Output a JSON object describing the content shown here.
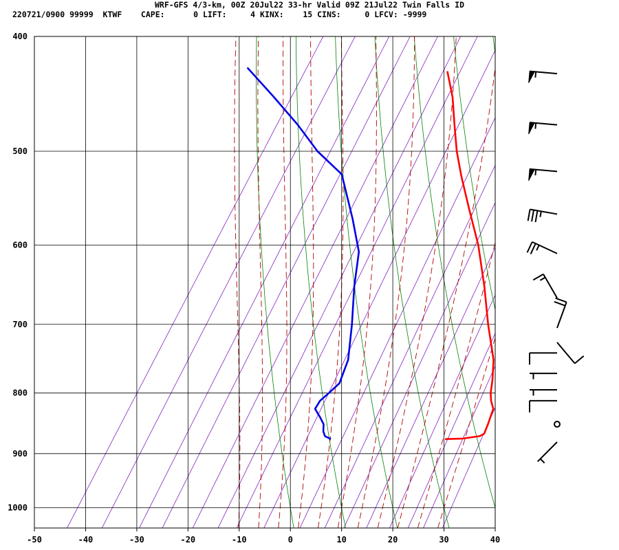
{
  "header": {
    "line1": "WRF-GFS 4/3-km, 00Z 20Jul22 33-hr Valid 09Z 21Jul22 Twin Falls ID",
    "line2": "220721/0900 99999  KTWF    CAPE:      0 LIFT:     4 KINX:    15 CINS:     0 LFCV: -9999"
  },
  "chart_data": {
    "type": "line",
    "title": "WRF-GFS 4/3-km, 00Z 20Jul22 33-hr Valid 09Z 21Jul22 Twin Falls ID",
    "subtitle": "220721/0900 99999  KTWF    CAPE:      0 LIFT:     4 KINX:    15 CINS:     0 LFCV: -9999",
    "x_axis": {
      "label": "",
      "range": [
        -50,
        40
      ],
      "ticks": [
        -50,
        -40,
        -30,
        -20,
        -10,
        0,
        10,
        20,
        30,
        40
      ],
      "tick_labels": [
        "-50",
        "-40",
        "-30",
        "-20",
        "-10",
        "0",
        "10",
        "20",
        "30",
        "40"
      ]
    },
    "y_axis": {
      "label": "",
      "range": [
        1040,
        400
      ],
      "ticks": [
        400,
        500,
        600,
        700,
        800,
        900,
        1000
      ],
      "tick_labels": [
        "400",
        "500",
        "600",
        "700",
        "800",
        "900",
        "1000"
      ],
      "scale": "log"
    },
    "grid": true,
    "skew_deg_per_log": 141.5,
    "series": [
      {
        "name": "temperature",
        "color": "#ff0000",
        "points": [
          {
            "p": 875,
            "t": 22.0
          },
          {
            "p": 874,
            "t": 25.4
          },
          {
            "p": 870,
            "t": 28.4
          },
          {
            "p": 866,
            "t": 29.0
          },
          {
            "p": 850,
            "t": 28.6
          },
          {
            "p": 825,
            "t": 27.8
          },
          {
            "p": 812,
            "t": 26.4
          },
          {
            "p": 800,
            "t": 25.4
          },
          {
            "p": 780,
            "t": 24.2
          },
          {
            "p": 750,
            "t": 22.0
          },
          {
            "p": 700,
            "t": 16.7
          },
          {
            "p": 650,
            "t": 11.4
          },
          {
            "p": 600,
            "t": 5.3
          },
          {
            "p": 560,
            "t": -0.7
          },
          {
            "p": 525,
            "t": -6.2
          },
          {
            "p": 500,
            "t": -10.1
          },
          {
            "p": 475,
            "t": -13.7
          },
          {
            "p": 450,
            "t": -17.4
          },
          {
            "p": 428,
            "t": -21.5
          }
        ]
      },
      {
        "name": "dewpoint",
        "color": "#0000e6",
        "points": [
          {
            "p": 875,
            "t": -0.3
          },
          {
            "p": 870,
            "t": -1.8
          },
          {
            "p": 862,
            "t": -2.7
          },
          {
            "p": 850,
            "t": -3.5
          },
          {
            "p": 838,
            "t": -5.1
          },
          {
            "p": 825,
            "t": -7.0
          },
          {
            "p": 812,
            "t": -7.0
          },
          {
            "p": 800,
            "t": -6.2
          },
          {
            "p": 785,
            "t": -5.3
          },
          {
            "p": 750,
            "t": -6.4
          },
          {
            "p": 700,
            "t": -9.9
          },
          {
            "p": 650,
            "t": -14.0
          },
          {
            "p": 608,
            "t": -17.2
          },
          {
            "p": 570,
            "t": -22.4
          },
          {
            "p": 523,
            "t": -29.8
          },
          {
            "p": 500,
            "t": -37.3
          },
          {
            "p": 475,
            "t": -44.3
          },
          {
            "p": 450,
            "t": -52.3
          },
          {
            "p": 425,
            "t": -61.0
          }
        ]
      }
    ],
    "background_lines": {
      "isotherms": {
        "color": "#000000",
        "values": [
          -50,
          -40,
          -30,
          -20,
          -10,
          0,
          10,
          20,
          30,
          40
        ]
      },
      "dry_adiabats": {
        "color": "#008000",
        "theta_c": [
          0,
          10,
          20,
          30,
          40,
          50,
          60,
          70,
          80,
          90,
          100,
          110,
          120
        ]
      },
      "moist_adiabats": {
        "color": "#b00000",
        "thetaw_c": [
          -10,
          -6,
          -2,
          2,
          6,
          10,
          14,
          18,
          22,
          26,
          30
        ]
      },
      "mixing_ratio_lines": {
        "color": "#8020c0",
        "g_per_kg": [
          0.1,
          0.2,
          0.4,
          0.6,
          1,
          1.5,
          2,
          3,
          5,
          7,
          9,
          12,
          16,
          20,
          24,
          30
        ]
      }
    },
    "wind_barbs": [
      {
        "p": 430,
        "dir": 275,
        "spd": 55
      },
      {
        "p": 475,
        "dir": 275,
        "spd": 55
      },
      {
        "p": 520,
        "dir": 275,
        "spd": 55
      },
      {
        "p": 565,
        "dir": 280,
        "spd": 35
      },
      {
        "p": 610,
        "dir": 295,
        "spd": 25
      },
      {
        "p": 665,
        "dir": 330,
        "spd": 15
      },
      {
        "p": 705,
        "dir": 20,
        "spd": 20
      },
      {
        "p": 725,
        "dir": 140,
        "spd": 10
      },
      {
        "p": 740,
        "dir": 270,
        "spd": 10
      },
      {
        "p": 770,
        "dir": 270,
        "spd": 5
      },
      {
        "p": 795,
        "dir": 270,
        "spd": 5
      },
      {
        "p": 812,
        "dir": 270,
        "spd": 10
      },
      {
        "p": 850,
        "dir": 0,
        "spd": 0
      },
      {
        "p": 880,
        "dir": 225,
        "spd": 5
      }
    ]
  }
}
